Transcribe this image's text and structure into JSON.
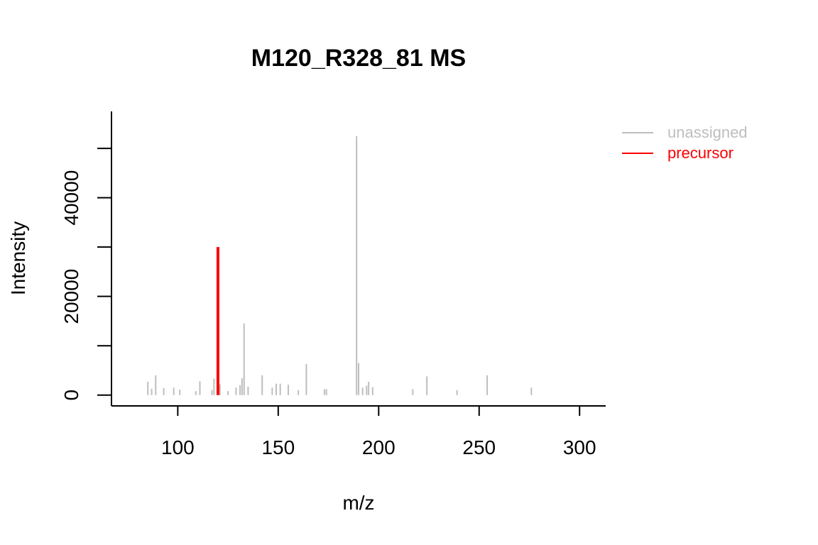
{
  "chart_data": {
    "type": "bar",
    "title": "M120_R328_81 MS",
    "xlabel": "m/z",
    "ylabel": "Intensity",
    "xlim": [
      67,
      313
    ],
    "ylim": [
      -2200,
      57500
    ],
    "x_ticks": [
      100,
      150,
      200,
      250,
      300
    ],
    "y_ticks": [
      0,
      20000,
      40000
    ],
    "y_tick_marks": [
      0,
      10000,
      20000,
      30000,
      40000,
      50000
    ],
    "legend": {
      "position": "top-right",
      "entries": [
        {
          "label": "unassigned",
          "color": "#bebebe"
        },
        {
          "label": "precursor",
          "color": "#ff0000"
        }
      ]
    },
    "series": [
      {
        "name": "unassigned",
        "color": "#bebebe",
        "peaks": [
          {
            "mz": 85.1,
            "intensity": 2700
          },
          {
            "mz": 87.0,
            "intensity": 1300
          },
          {
            "mz": 89.0,
            "intensity": 4000
          },
          {
            "mz": 93.0,
            "intensity": 1400
          },
          {
            "mz": 98.0,
            "intensity": 1500
          },
          {
            "mz": 101.0,
            "intensity": 1100
          },
          {
            "mz": 109.0,
            "intensity": 800
          },
          {
            "mz": 111.0,
            "intensity": 2800
          },
          {
            "mz": 117.0,
            "intensity": 1000
          },
          {
            "mz": 118.0,
            "intensity": 3300
          },
          {
            "mz": 121.0,
            "intensity": 2200
          },
          {
            "mz": 125.0,
            "intensity": 800
          },
          {
            "mz": 129.0,
            "intensity": 1500
          },
          {
            "mz": 131.0,
            "intensity": 2000
          },
          {
            "mz": 132.0,
            "intensity": 3400
          },
          {
            "mz": 133.0,
            "intensity": 14500
          },
          {
            "mz": 135.0,
            "intensity": 1700
          },
          {
            "mz": 142.0,
            "intensity": 4000
          },
          {
            "mz": 147.0,
            "intensity": 1500
          },
          {
            "mz": 149.0,
            "intensity": 2300
          },
          {
            "mz": 151.0,
            "intensity": 2300
          },
          {
            "mz": 155.0,
            "intensity": 2100
          },
          {
            "mz": 160.0,
            "intensity": 1000
          },
          {
            "mz": 164.0,
            "intensity": 6300
          },
          {
            "mz": 173.0,
            "intensity": 1200
          },
          {
            "mz": 174.0,
            "intensity": 1200
          },
          {
            "mz": 189.0,
            "intensity": 52500
          },
          {
            "mz": 190.0,
            "intensity": 6500
          },
          {
            "mz": 192.0,
            "intensity": 1500
          },
          {
            "mz": 194.0,
            "intensity": 1900
          },
          {
            "mz": 195.0,
            "intensity": 2700
          },
          {
            "mz": 197.0,
            "intensity": 1600
          },
          {
            "mz": 217.0,
            "intensity": 1200
          },
          {
            "mz": 224.0,
            "intensity": 3800
          },
          {
            "mz": 239.0,
            "intensity": 1000
          },
          {
            "mz": 254.0,
            "intensity": 4000
          },
          {
            "mz": 276.0,
            "intensity": 1500
          }
        ]
      },
      {
        "name": "precursor",
        "color": "#ff0000",
        "peaks": [
          {
            "mz": 120.0,
            "intensity": 30000
          }
        ]
      }
    ]
  }
}
